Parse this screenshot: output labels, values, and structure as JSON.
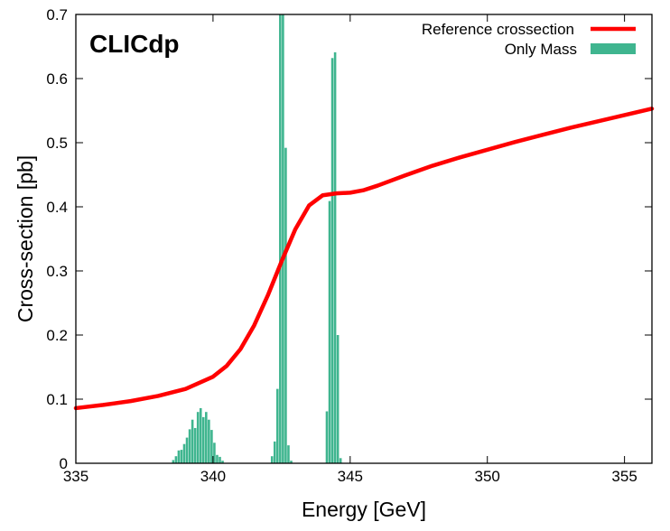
{
  "chart_data": {
    "type": "line+histogram",
    "title": "",
    "xlabel": "Energy [GeV]",
    "ylabel": "Cross-section [pb]",
    "xlim": [
      335,
      356
    ],
    "ylim": [
      0,
      0.7
    ],
    "xticks": [
      335,
      340,
      345,
      350,
      355
    ],
    "yticks": [
      0,
      0.1,
      0.2,
      0.3,
      0.4,
      0.5,
      0.6,
      0.7
    ],
    "xtick_labels": [
      "335",
      "340",
      "345",
      "350",
      "355"
    ],
    "ytick_labels": [
      "0",
      "0.1",
      "0.2",
      "0.3",
      "0.4",
      "0.5",
      "0.6",
      "0.7"
    ],
    "grid": false,
    "annotation": "CLICdp",
    "legend_position": "top-right",
    "colors": {
      "line": "#ff0000",
      "hist": "#3fb58f",
      "axis": "#000000"
    },
    "series": [
      {
        "name": "Reference crossection",
        "kind": "line",
        "x": [
          335,
          336,
          337,
          338,
          339,
          340,
          340.5,
          341,
          341.5,
          342,
          342.5,
          343,
          343.5,
          344,
          344.5,
          345,
          345.5,
          346,
          347,
          348,
          349,
          350,
          351,
          352,
          353,
          354,
          355,
          356
        ],
        "y": [
          0.086,
          0.091,
          0.097,
          0.105,
          0.116,
          0.135,
          0.152,
          0.178,
          0.215,
          0.262,
          0.315,
          0.365,
          0.402,
          0.418,
          0.421,
          0.422,
          0.426,
          0.433,
          0.449,
          0.464,
          0.477,
          0.489,
          0.501,
          0.512,
          0.523,
          0.533,
          0.543,
          0.553
        ]
      },
      {
        "name": "Only Mass",
        "kind": "histogram",
        "bin_width": 0.1,
        "bins": [
          [
            338.55,
            0.005
          ],
          [
            338.65,
            0.011
          ],
          [
            338.75,
            0.02
          ],
          [
            338.85,
            0.021
          ],
          [
            338.95,
            0.03
          ],
          [
            339.05,
            0.04
          ],
          [
            339.15,
            0.053
          ],
          [
            339.25,
            0.068
          ],
          [
            339.35,
            0.055
          ],
          [
            339.45,
            0.08
          ],
          [
            339.55,
            0.086
          ],
          [
            339.65,
            0.072
          ],
          [
            339.75,
            0.08
          ],
          [
            339.85,
            0.068
          ],
          [
            339.95,
            0.052
          ],
          [
            340.05,
            0.032
          ],
          [
            340.15,
            0.013
          ],
          [
            340.25,
            0.01
          ],
          [
            340.35,
            0.004
          ],
          [
            342.15,
            0.011
          ],
          [
            342.25,
            0.034
          ],
          [
            342.35,
            0.116
          ],
          [
            342.45,
            0.7
          ],
          [
            342.55,
            0.7
          ],
          [
            342.65,
            0.492
          ],
          [
            342.75,
            0.028
          ],
          [
            342.85,
            0.004
          ],
          [
            344.15,
            0.081
          ],
          [
            344.25,
            0.409
          ],
          [
            344.35,
            0.632
          ],
          [
            344.45,
            0.641
          ],
          [
            344.55,
            0.2
          ],
          [
            344.65,
            0.008
          ]
        ]
      }
    ]
  }
}
